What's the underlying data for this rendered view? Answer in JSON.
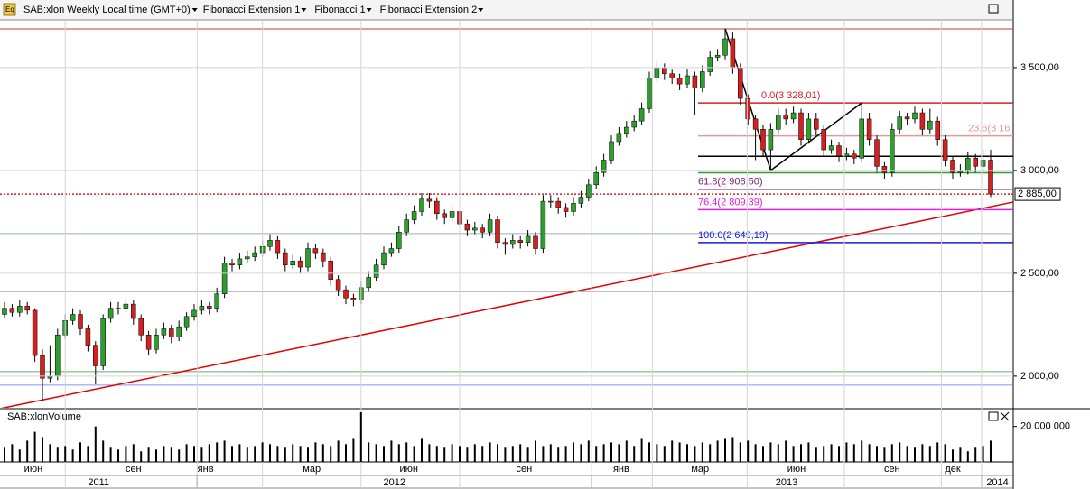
{
  "chart_data": {
    "type": "candlestick",
    "title": "SAB:xlon Weekly Local time (GMT+0)",
    "menus": [
      "Fibonacci Extension 1",
      "Fibonacci 1",
      "Fibonacci Extension 2"
    ],
    "volume_title": "SAB:xlonVolume",
    "up_color": "#2e9e2e",
    "down_color": "#d42020",
    "ylim": [
      1846,
      3732
    ],
    "yticks": [
      {
        "value": 3500,
        "label": "3 500,00"
      },
      {
        "value": 3000,
        "label": "3 000,00"
      },
      {
        "value": 2500,
        "label": "2 500,00"
      },
      {
        "value": 2000,
        "label": "2 000,00"
      }
    ],
    "grid": true,
    "vol_ylim": [
      0,
      29000000
    ],
    "vol_yticks": [
      {
        "value": 20000000,
        "label": "20 000 000"
      }
    ],
    "last_price": {
      "value": 2885,
      "label": "2 885,00",
      "color": "#d42020"
    },
    "ohlc": [
      [
        2300,
        2360,
        2280,
        2330
      ],
      [
        2330,
        2350,
        2290,
        2310
      ],
      [
        2310,
        2370,
        2290,
        2340
      ],
      [
        2340,
        2360,
        2300,
        2320
      ],
      [
        2320,
        2330,
        2070,
        2100
      ],
      [
        2100,
        2130,
        1880,
        1990
      ],
      [
        1990,
        2150,
        1970,
        2000
      ],
      [
        2000,
        2230,
        1980,
        2200
      ],
      [
        2200,
        2300,
        2180,
        2270
      ],
      [
        2270,
        2330,
        2250,
        2300
      ],
      [
        2300,
        2320,
        2200,
        2230
      ],
      [
        2230,
        2250,
        2120,
        2150
      ],
      [
        2150,
        2170,
        1960,
        2050
      ],
      [
        2050,
        2300,
        2030,
        2280
      ],
      [
        2280,
        2360,
        2260,
        2330
      ],
      [
        2330,
        2360,
        2300,
        2330
      ],
      [
        2330,
        2380,
        2310,
        2350
      ],
      [
        2350,
        2370,
        2250,
        2280
      ],
      [
        2280,
        2300,
        2170,
        2200
      ],
      [
        2200,
        2220,
        2100,
        2130
      ],
      [
        2130,
        2230,
        2110,
        2200
      ],
      [
        2200,
        2260,
        2180,
        2230
      ],
      [
        2230,
        2250,
        2160,
        2190
      ],
      [
        2190,
        2270,
        2170,
        2240
      ],
      [
        2240,
        2310,
        2220,
        2290
      ],
      [
        2290,
        2350,
        2270,
        2320
      ],
      [
        2320,
        2370,
        2300,
        2340
      ],
      [
        2340,
        2360,
        2300,
        2330
      ],
      [
        2330,
        2430,
        2310,
        2400
      ],
      [
        2400,
        2580,
        2380,
        2550
      ],
      [
        2550,
        2570,
        2510,
        2540
      ],
      [
        2540,
        2600,
        2520,
        2570
      ],
      [
        2570,
        2610,
        2550,
        2580
      ],
      [
        2580,
        2630,
        2560,
        2600
      ],
      [
        2600,
        2660,
        2580,
        2630
      ],
      [
        2630,
        2690,
        2610,
        2660
      ],
      [
        2660,
        2680,
        2570,
        2600
      ],
      [
        2600,
        2620,
        2510,
        2540
      ],
      [
        2540,
        2590,
        2520,
        2560
      ],
      [
        2560,
        2580,
        2500,
        2530
      ],
      [
        2530,
        2650,
        2510,
        2620
      ],
      [
        2620,
        2640,
        2570,
        2600
      ],
      [
        2600,
        2620,
        2530,
        2560
      ],
      [
        2560,
        2580,
        2440,
        2470
      ],
      [
        2470,
        2490,
        2390,
        2420
      ],
      [
        2420,
        2440,
        2350,
        2380
      ],
      [
        2380,
        2400,
        2340,
        2370
      ],
      [
        2370,
        2460,
        2350,
        2430
      ],
      [
        2430,
        2510,
        2410,
        2480
      ],
      [
        2480,
        2570,
        2460,
        2540
      ],
      [
        2540,
        2630,
        2520,
        2600
      ],
      [
        2600,
        2650,
        2580,
        2620
      ],
      [
        2620,
        2730,
        2600,
        2700
      ],
      [
        2700,
        2790,
        2680,
        2760
      ],
      [
        2760,
        2830,
        2740,
        2800
      ],
      [
        2800,
        2890,
        2780,
        2860
      ],
      [
        2860,
        2890,
        2820,
        2850
      ],
      [
        2850,
        2870,
        2760,
        2790
      ],
      [
        2790,
        2810,
        2740,
        2770
      ],
      [
        2770,
        2830,
        2750,
        2800
      ],
      [
        2800,
        2820,
        2710,
        2740
      ],
      [
        2740,
        2760,
        2680,
        2710
      ],
      [
        2710,
        2750,
        2690,
        2720
      ],
      [
        2720,
        2740,
        2670,
        2700
      ],
      [
        2700,
        2790,
        2680,
        2760
      ],
      [
        2760,
        2780,
        2620,
        2650
      ],
      [
        2650,
        2670,
        2590,
        2640
      ],
      [
        2640,
        2690,
        2620,
        2660
      ],
      [
        2660,
        2680,
        2620,
        2650
      ],
      [
        2650,
        2710,
        2630,
        2680
      ],
      [
        2680,
        2700,
        2590,
        2620
      ],
      [
        2620,
        2880,
        2600,
        2850
      ],
      [
        2850,
        2880,
        2820,
        2850
      ],
      [
        2850,
        2870,
        2790,
        2820
      ],
      [
        2820,
        2840,
        2770,
        2800
      ],
      [
        2800,
        2870,
        2780,
        2840
      ],
      [
        2840,
        2900,
        2820,
        2870
      ],
      [
        2870,
        2960,
        2850,
        2930
      ],
      [
        2930,
        3020,
        2910,
        2990
      ],
      [
        2990,
        3080,
        2970,
        3050
      ],
      [
        3050,
        3170,
        3030,
        3140
      ],
      [
        3140,
        3210,
        3120,
        3180
      ],
      [
        3180,
        3240,
        3160,
        3210
      ],
      [
        3210,
        3270,
        3190,
        3240
      ],
      [
        3240,
        3330,
        3220,
        3300
      ],
      [
        3300,
        3480,
        3280,
        3450
      ],
      [
        3450,
        3530,
        3430,
        3500
      ],
      [
        3500,
        3520,
        3440,
        3470
      ],
      [
        3470,
        3490,
        3420,
        3450
      ],
      [
        3450,
        3470,
        3390,
        3420
      ],
      [
        3420,
        3490,
        3400,
        3460
      ],
      [
        3460,
        3480,
        3270,
        3400
      ],
      [
        3400,
        3510,
        3380,
        3480
      ],
      [
        3480,
        3580,
        3460,
        3550
      ],
      [
        3550,
        3590,
        3530,
        3560
      ],
      [
        3560,
        3690,
        3540,
        3640
      ],
      [
        3640,
        3670,
        3470,
        3500
      ],
      [
        3500,
        3520,
        3320,
        3350
      ],
      [
        3350,
        3370,
        3220,
        3250
      ],
      [
        3250,
        3270,
        3050,
        3200
      ],
      [
        3200,
        3220,
        3070,
        3100
      ],
      [
        3100,
        3230,
        3000,
        3200
      ],
      [
        3200,
        3300,
        3180,
        3270
      ],
      [
        3270,
        3300,
        3220,
        3250
      ],
      [
        3250,
        3310,
        3230,
        3280
      ],
      [
        3280,
        3300,
        3120,
        3150
      ],
      [
        3150,
        3280,
        3130,
        3250
      ],
      [
        3250,
        3280,
        3170,
        3200
      ],
      [
        3200,
        3220,
        3070,
        3100
      ],
      [
        3100,
        3150,
        3080,
        3120
      ],
      [
        3120,
        3140,
        3040,
        3070
      ],
      [
        3070,
        3110,
        3050,
        3080
      ],
      [
        3080,
        3100,
        3030,
        3060
      ],
      [
        3060,
        3330,
        3040,
        3250
      ],
      [
        3250,
        3280,
        3120,
        3150
      ],
      [
        3150,
        3170,
        2990,
        3020
      ],
      [
        3020,
        3040,
        2960,
        2990
      ],
      [
        2990,
        3230,
        2970,
        3200
      ],
      [
        3200,
        3290,
        3180,
        3260
      ],
      [
        3260,
        3280,
        3220,
        3250
      ],
      [
        3250,
        3310,
        3230,
        3280
      ],
      [
        3280,
        3300,
        3170,
        3200
      ],
      [
        3200,
        3300,
        3180,
        3240
      ],
      [
        3240,
        3260,
        3120,
        3150
      ],
      [
        3150,
        3170,
        3020,
        3050
      ],
      [
        3050,
        3070,
        2960,
        2990
      ],
      [
        2990,
        3030,
        2970,
        3000
      ],
      [
        3000,
        3090,
        2980,
        3060
      ],
      [
        3060,
        3080,
        2990,
        3020
      ],
      [
        3020,
        3100,
        3000,
        3050
      ],
      [
        3050,
        3100,
        2870,
        2885
      ]
    ],
    "volume": [
      8000000,
      10000000,
      7000000,
      12000000,
      17000000,
      14000000,
      10000000,
      8000000,
      9000000,
      7000000,
      11000000,
      9000000,
      20000000,
      12000000,
      8000000,
      7000000,
      9000000,
      10000000,
      6000000,
      8000000,
      7000000,
      9000000,
      8000000,
      7000000,
      10000000,
      9000000,
      8000000,
      10000000,
      11000000,
      12000000,
      9000000,
      10000000,
      8000000,
      9000000,
      11000000,
      10000000,
      9000000,
      8000000,
      10000000,
      9000000,
      8000000,
      11000000,
      10000000,
      9000000,
      12000000,
      10000000,
      13000000,
      28000000,
      11000000,
      10000000,
      9000000,
      12000000,
      10000000,
      11000000,
      9000000,
      13000000,
      10000000,
      9000000,
      8000000,
      10000000,
      9000000,
      8000000,
      10000000,
      9000000,
      11000000,
      10000000,
      8000000,
      9000000,
      10000000,
      8000000,
      12000000,
      9000000,
      10000000,
      8000000,
      9000000,
      11000000,
      10000000,
      12000000,
      9000000,
      10000000,
      11000000,
      10000000,
      12000000,
      9000000,
      13000000,
      11000000,
      10000000,
      9000000,
      12000000,
      11000000,
      10000000,
      9000000,
      11000000,
      10000000,
      12000000,
      13000000,
      14000000,
      11000000,
      12000000,
      10000000,
      9000000,
      11000000,
      10000000,
      12000000,
      9000000,
      10000000,
      11000000,
      8000000,
      9000000,
      10000000,
      9000000,
      11000000,
      10000000,
      12000000,
      10000000,
      9000000,
      8000000,
      10000000,
      11000000,
      9000000,
      8000000,
      10000000,
      9000000,
      11000000,
      10000000,
      7000000,
      8000000,
      6000000,
      8000000,
      9000000,
      12000000
    ],
    "levels": [
      {
        "value": 3688,
        "color": "#c0392b"
      },
      {
        "value": 2693,
        "color": "#9bb0bb"
      },
      {
        "value": 2413,
        "color": "#000000"
      },
      {
        "value": 2022,
        "color": "#6aaa6a"
      },
      {
        "value": 1956,
        "color": "#8890ee"
      }
    ],
    "fib_levels": [
      {
        "value": 3328.01,
        "label": "0.0(3 328,01)",
        "color": "#d42020"
      },
      {
        "value": 3167.8,
        "label": "23.6(3 16",
        "color": "#e09a9a"
      },
      {
        "value": 3068.7,
        "color": "#000000"
      },
      {
        "value": 2988.6,
        "color": "#2e9e2e"
      },
      {
        "value": 2908.5,
        "label": "61.8(2 908,50)",
        "color": "#7a1a7a"
      },
      {
        "value": 2809.39,
        "label": "76.4(2 809,39)",
        "color": "#e020e0"
      },
      {
        "value": 2649.19,
        "label": "100.0(2 649,19)",
        "color": "#1a1ad4"
      }
    ],
    "fib_points": [
      [
        95,
        3690
      ],
      [
        101,
        3000
      ],
      [
        113,
        3328
      ]
    ],
    "trendline": [
      [
        -0.6,
        1842
      ],
      [
        133,
        2846
      ]
    ],
    "vgrid": [
      8,
      25.4,
      34,
      47,
      60,
      77.4,
      85.4,
      97.9,
      110.7,
      123.5,
      128.8
    ],
    "months": [
      {
        "label": "июн",
        "at": 3.8
      },
      {
        "label": "сен",
        "at": 17
      },
      {
        "label": "янв",
        "at": 26.5
      },
      {
        "label": "мар",
        "at": 40.5
      },
      {
        "label": "июн",
        "at": 53.3
      },
      {
        "label": "сен",
        "at": 68.5
      },
      {
        "label": "янв",
        "at": 81.3
      },
      {
        "label": "мар",
        "at": 91.7
      },
      {
        "label": "июн",
        "at": 104.4
      },
      {
        "label": "сен",
        "at": 117
      },
      {
        "label": "дек",
        "at": 125
      }
    ],
    "years": [
      {
        "label": "2011",
        "from": -0.6,
        "to": 25.4
      },
      {
        "label": "2012",
        "from": 25.4,
        "to": 77.4
      },
      {
        "label": "2013",
        "from": 77.4,
        "to": 128.8
      },
      {
        "label": "2014",
        "from": 128.8,
        "to": 133
      }
    ]
  }
}
